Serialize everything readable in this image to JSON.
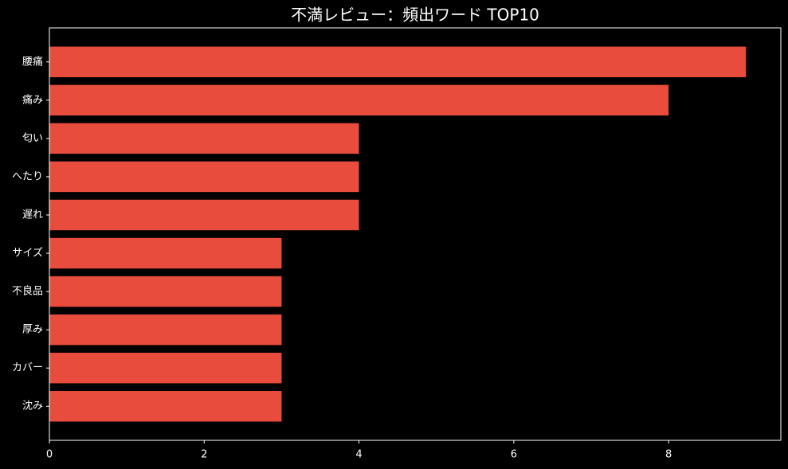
{
  "chart_data": {
    "type": "barh",
    "title": "不満レビュー：頻出ワード TOP10",
    "categories": [
      "腰痛",
      "痛み",
      "匂い",
      "へたり",
      "遅れ",
      "サイズ",
      "不良品",
      "厚み",
      "カバー",
      "沈み"
    ],
    "values": [
      9,
      8,
      4,
      4,
      4,
      3,
      3,
      3,
      3,
      3
    ],
    "color": "#e74c3c",
    "xlim": [
      0,
      9.45
    ],
    "xticks": [
      0,
      2,
      4,
      6,
      8
    ],
    "grid": false
  }
}
